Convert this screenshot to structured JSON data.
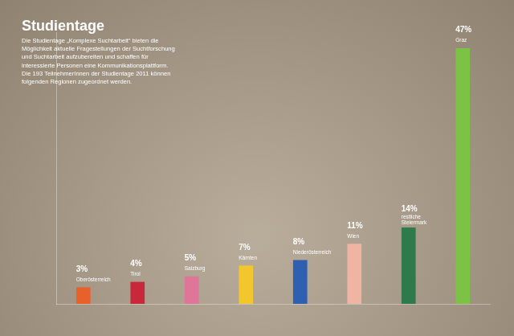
{
  "chart_data": {
    "type": "bar",
    "title": "Studientage",
    "subtitle": "Die Studientage „Komplexe Suchtarbeit“ bieten die Möglichkeit aktuelle Fragestellungen der Suchtforschung und Suchtarbeit aufzubereiten und schaffen für interessierte Personen eine Kommunikationsplattform. Die 193 TeilnehmerInnen der Studientage 2011 können folgenden Regionen zugeordnet werden.",
    "categories": [
      "Oberösterreich",
      "Tirol",
      "Salzburg",
      "Kärnten",
      "Niederösterreich",
      "Wien",
      "restliche Steiermark",
      "Graz"
    ],
    "values": [
      3,
      4,
      5,
      7,
      8,
      11,
      14,
      47
    ],
    "value_labels": [
      "3%",
      "4%",
      "5%",
      "7%",
      "8%",
      "11%",
      "14%",
      "47%"
    ],
    "colors": [
      "#e8612c",
      "#c8283a",
      "#e0759a",
      "#f2c72e",
      "#2f5fb0",
      "#f0b4a4",
      "#2e7a4a",
      "#7cc245"
    ],
    "data_labels": true,
    "tick_labels": false,
    "grid": false,
    "ylim": [
      0,
      50
    ]
  }
}
